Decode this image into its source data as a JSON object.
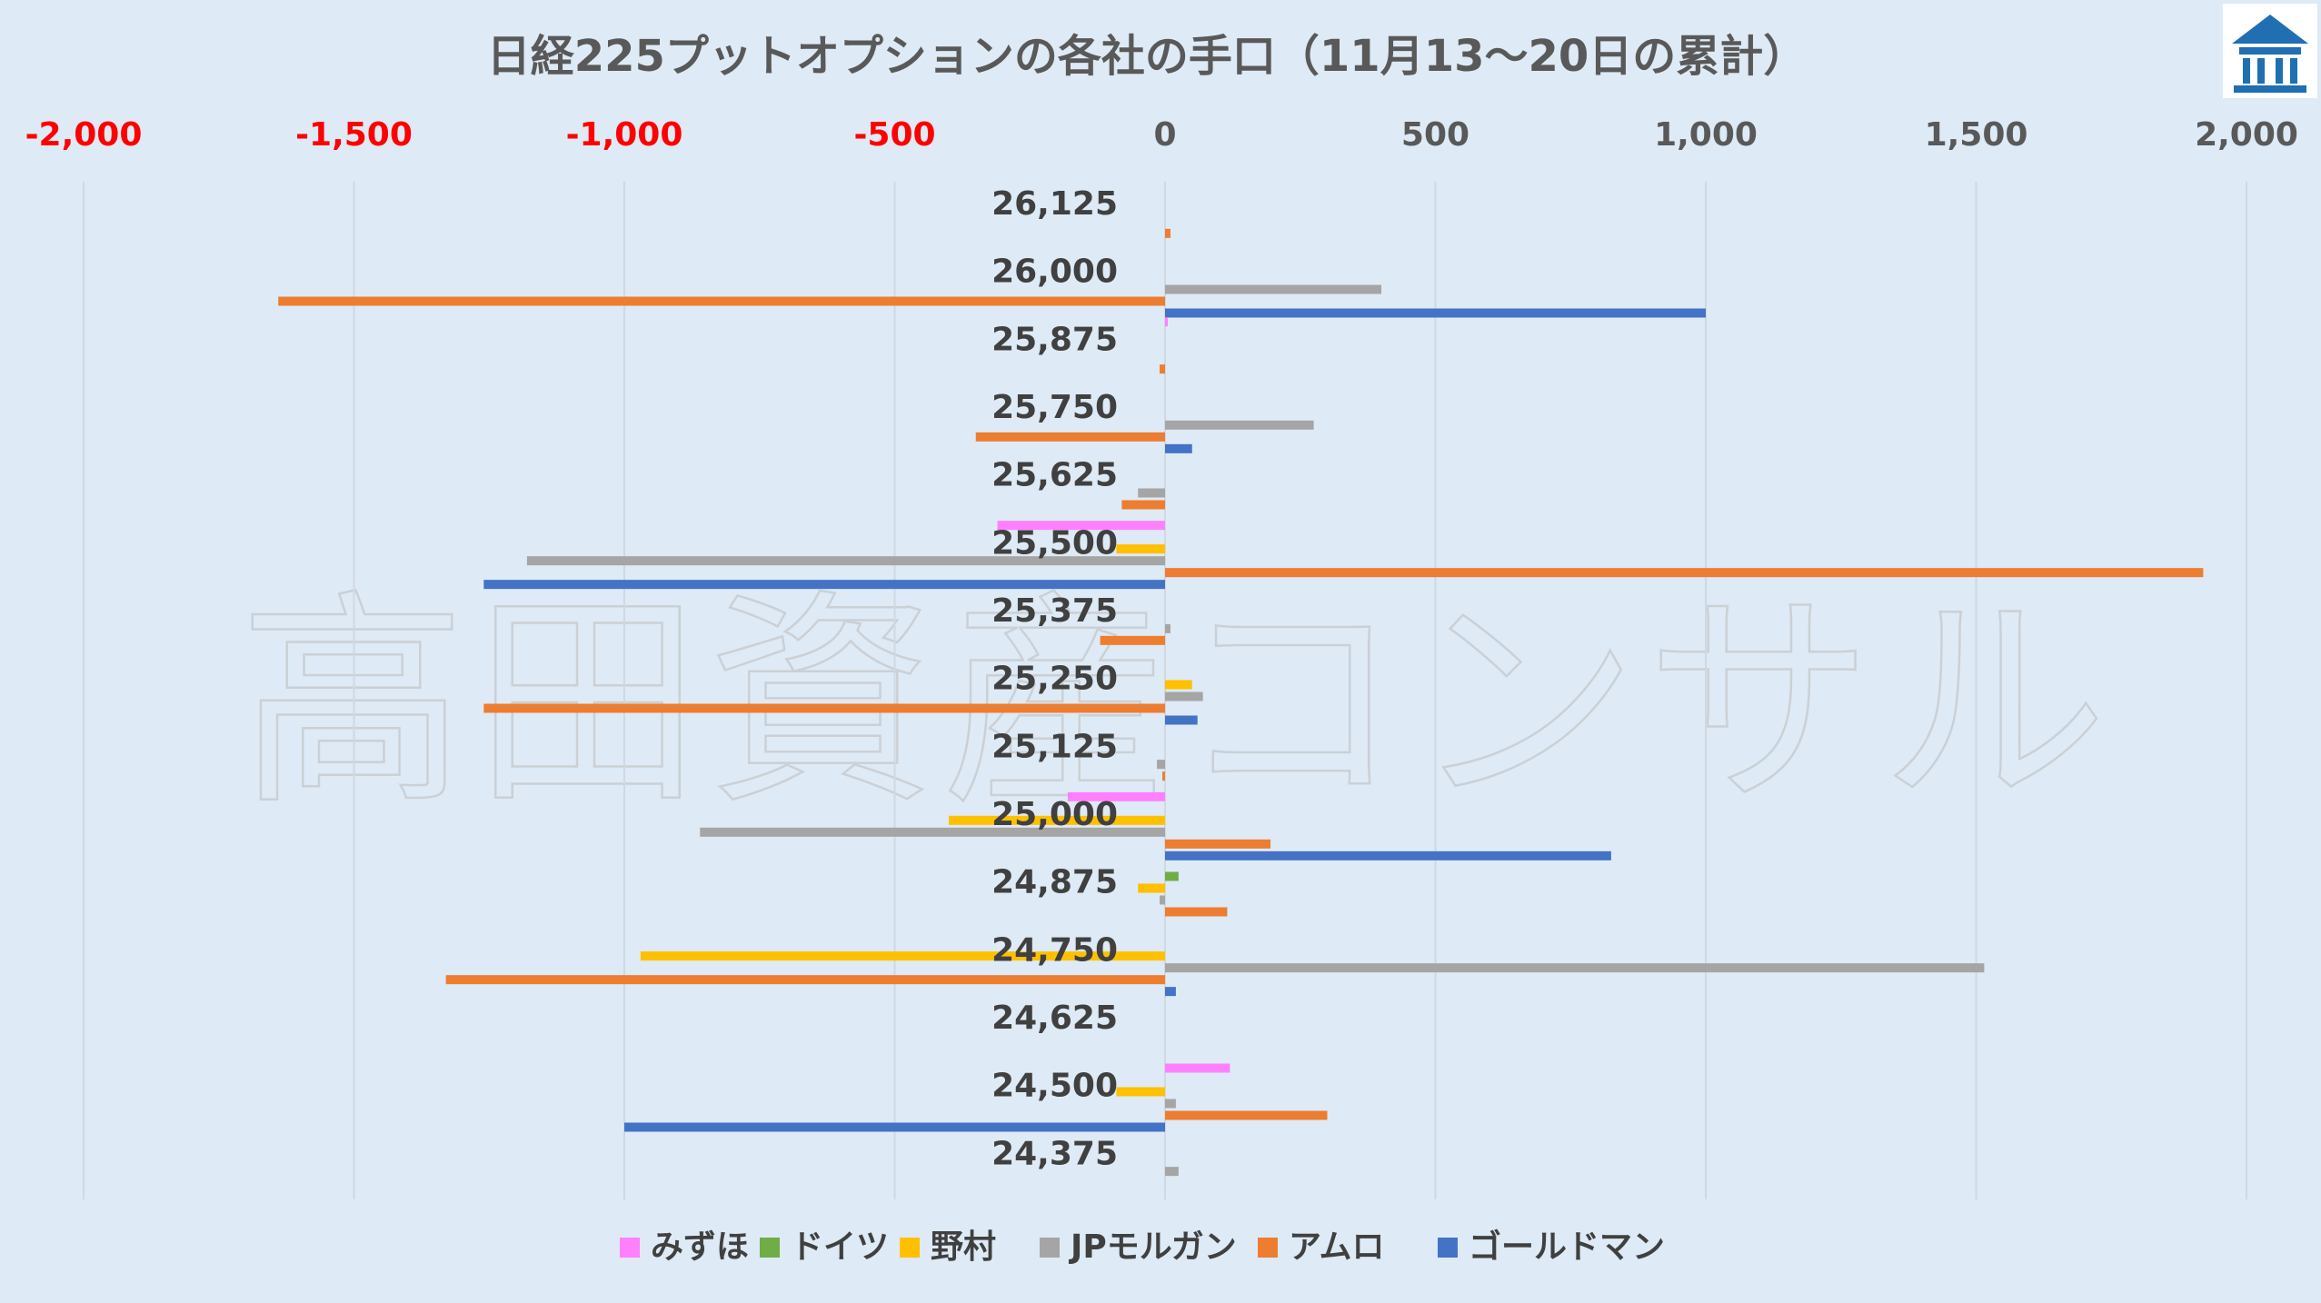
{
  "chart_data": {
    "type": "bar",
    "orientation": "horizontal",
    "title": "日経225プットオプションの各社の手口（11月13〜20日の累計）",
    "xlim": [
      -2000,
      2000
    ],
    "xticks": [
      -2000,
      -1500,
      -1000,
      -500,
      0,
      500,
      1000,
      1500,
      2000
    ],
    "xtick_labels": [
      "-2,000",
      "-1,500",
      "-1,000",
      "-500",
      "0",
      "500",
      "1,000",
      "1,500",
      "2,000"
    ],
    "negative_tick_color": "#ff0000",
    "positive_tick_color": "#595959",
    "grid": "vertical",
    "legend_position": "bottom",
    "categories": [
      "26,125",
      "26,000",
      "25,875",
      "25,750",
      "25,625",
      "25,500",
      "25,375",
      "25,250",
      "25,125",
      "25,000",
      "24,875",
      "24,750",
      "24,625",
      "24,500",
      "24,375"
    ],
    "series": [
      {
        "name": "みずほ",
        "color": "#ff80ff",
        "values": [
          0,
          0,
          5,
          0,
          0,
          -310,
          0,
          0,
          0,
          -180,
          0,
          0,
          0,
          120,
          0
        ]
      },
      {
        "name": "ドイツ",
        "color": "#70ad47",
        "values": [
          0,
          0,
          0,
          0,
          0,
          0,
          0,
          0,
          0,
          0,
          25,
          0,
          0,
          0,
          0
        ]
      },
      {
        "name": "野村",
        "color": "#ffc000",
        "values": [
          0,
          0,
          0,
          0,
          0,
          -90,
          0,
          50,
          0,
          -400,
          -50,
          -970,
          0,
          -90,
          0
        ]
      },
      {
        "name": "JPモルガン",
        "color": "#a5a5a5",
        "values": [
          0,
          400,
          0,
          275,
          -50,
          -1180,
          10,
          70,
          -15,
          -860,
          -10,
          1515,
          0,
          20,
          25
        ]
      },
      {
        "name": "アムロ",
        "color": "#ed7d31",
        "values": [
          10,
          -1640,
          -10,
          -350,
          -80,
          1920,
          -120,
          -1260,
          -5,
          195,
          115,
          -1330,
          0,
          300,
          0
        ]
      },
      {
        "name": "ゴールドマン",
        "color": "#4472c4",
        "values": [
          0,
          1000,
          0,
          50,
          0,
          -1260,
          0,
          60,
          0,
          825,
          0,
          20,
          0,
          -1000,
          0
        ]
      }
    ]
  },
  "watermark": "高田資産コンサル",
  "logo": {
    "name": "building-logo-icon",
    "color": "#1f6fb2"
  }
}
